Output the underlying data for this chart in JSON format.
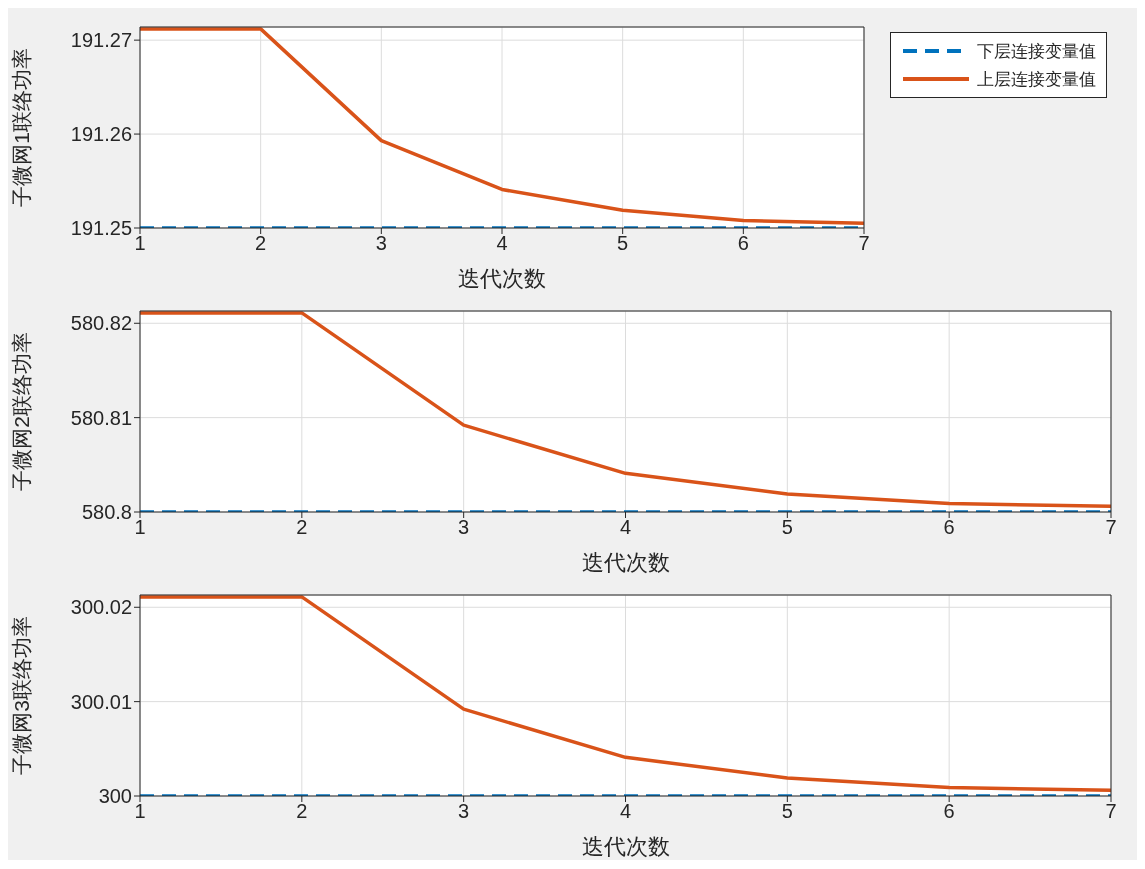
{
  "chart_data": [
    {
      "type": "line",
      "xlabel": "迭代次数",
      "ylabel": "子微网1联络功率",
      "x": [
        1,
        2,
        3,
        4,
        5,
        6,
        7
      ],
      "xlim": [
        1,
        7
      ],
      "xticks": [
        1,
        2,
        3,
        4,
        5,
        6,
        7
      ],
      "ylim": [
        191.25,
        191.2714
      ],
      "yticks": [
        191.25,
        191.26,
        191.27
      ],
      "grid": true,
      "legend": "top right",
      "marker": "none",
      "series": [
        {
          "name": "下层连接变量值",
          "color": "#0072bd",
          "line_style": "dashed",
          "values": [
            191.25,
            191.25,
            191.25,
            191.25,
            191.25,
            191.25,
            191.25
          ]
        },
        {
          "name": "上层连接变量值",
          "color": "#d95319",
          "line_style": "solid",
          "values": [
            191.2712,
            191.2712,
            191.2593,
            191.2541,
            191.2519,
            191.2508,
            191.2505
          ]
        }
      ]
    },
    {
      "type": "line",
      "xlabel": "迭代次数",
      "ylabel": "子微网2联络功率",
      "x": [
        1,
        2,
        3,
        4,
        5,
        6,
        7
      ],
      "xlim": [
        1,
        7
      ],
      "xticks": [
        1,
        2,
        3,
        4,
        5,
        6,
        7
      ],
      "ylim": [
        580.8,
        580.8213
      ],
      "yticks": [
        580.8,
        580.81,
        580.82
      ],
      "grid": true,
      "marker": "none",
      "series": [
        {
          "color": "#0072bd",
          "line_style": "dashed",
          "values": [
            580.8,
            580.8,
            580.8,
            580.8,
            580.8,
            580.8,
            580.8
          ]
        },
        {
          "color": "#d95319",
          "line_style": "solid",
          "values": [
            580.8211,
            580.8211,
            580.8092,
            580.8041,
            580.8019,
            580.8009,
            580.8006
          ]
        }
      ]
    },
    {
      "type": "line",
      "xlabel": "迭代次数",
      "ylabel": "子微网3联络功率",
      "x": [
        1,
        2,
        3,
        4,
        5,
        6,
        7
      ],
      "xlim": [
        1,
        7
      ],
      "xticks": [
        1,
        2,
        3,
        4,
        5,
        6,
        7
      ],
      "ylim": [
        300,
        300.0213
      ],
      "yticks": [
        300,
        300.01,
        300.02
      ],
      "grid": true,
      "marker": "none",
      "series": [
        {
          "color": "#0072bd",
          "line_style": "dashed",
          "values": [
            300,
            300,
            300,
            300,
            300,
            300,
            300
          ]
        },
        {
          "color": "#d95319",
          "line_style": "solid",
          "values": [
            300.0211,
            300.0211,
            300.0092,
            300.0041,
            300.0019,
            300.0009,
            300.0006
          ]
        }
      ]
    }
  ]
}
